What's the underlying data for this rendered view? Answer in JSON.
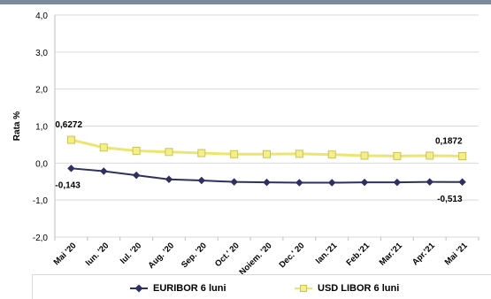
{
  "chart_data": {
    "type": "line",
    "categories": [
      "Mai '20",
      "Iun. '20",
      "Iul. '20",
      "Aug. '20",
      "Sep. '20",
      "Oct.' 20",
      "Noiem. '20",
      "Dec.' 20",
      "Ian.'21",
      "Feb.'21",
      "Mar.'21",
      "Apr.'21",
      "Mai '21"
    ],
    "ylabel": "Rata %",
    "ylim": [
      -2.0,
      4.0
    ],
    "yticks": [
      "4,0",
      "3,0",
      "2,0",
      "1,0",
      "0,0",
      "-1,0",
      "-2,0"
    ],
    "ytick_values": [
      4,
      3,
      2,
      1,
      0,
      -1,
      -2
    ],
    "grid": "horizontal",
    "legend_position": "bottom",
    "series": [
      {
        "name": "EURIBOR 6 luni",
        "color": "#2e3060",
        "marker": "diamond",
        "values": [
          -0.143,
          -0.22,
          -0.33,
          -0.44,
          -0.47,
          -0.51,
          -0.52,
          -0.53,
          -0.53,
          -0.52,
          -0.52,
          -0.51,
          -0.513
        ]
      },
      {
        "name": "USD LIBOR 6 luni",
        "color": "#ece66f",
        "marker": "square",
        "values": [
          0.6272,
          0.42,
          0.33,
          0.3,
          0.27,
          0.24,
          0.24,
          0.25,
          0.23,
          0.2,
          0.19,
          0.2,
          0.1872
        ]
      }
    ],
    "annotations": [
      {
        "text": "0,6272",
        "series": 1,
        "index": 0,
        "placement": "above-left"
      },
      {
        "text": "-0,143",
        "series": 0,
        "index": 0,
        "placement": "below-left"
      },
      {
        "text": "0,1872",
        "series": 1,
        "index": 12,
        "placement": "above-right"
      },
      {
        "text": "-0,513",
        "series": 0,
        "index": 12,
        "placement": "below-right"
      }
    ]
  }
}
